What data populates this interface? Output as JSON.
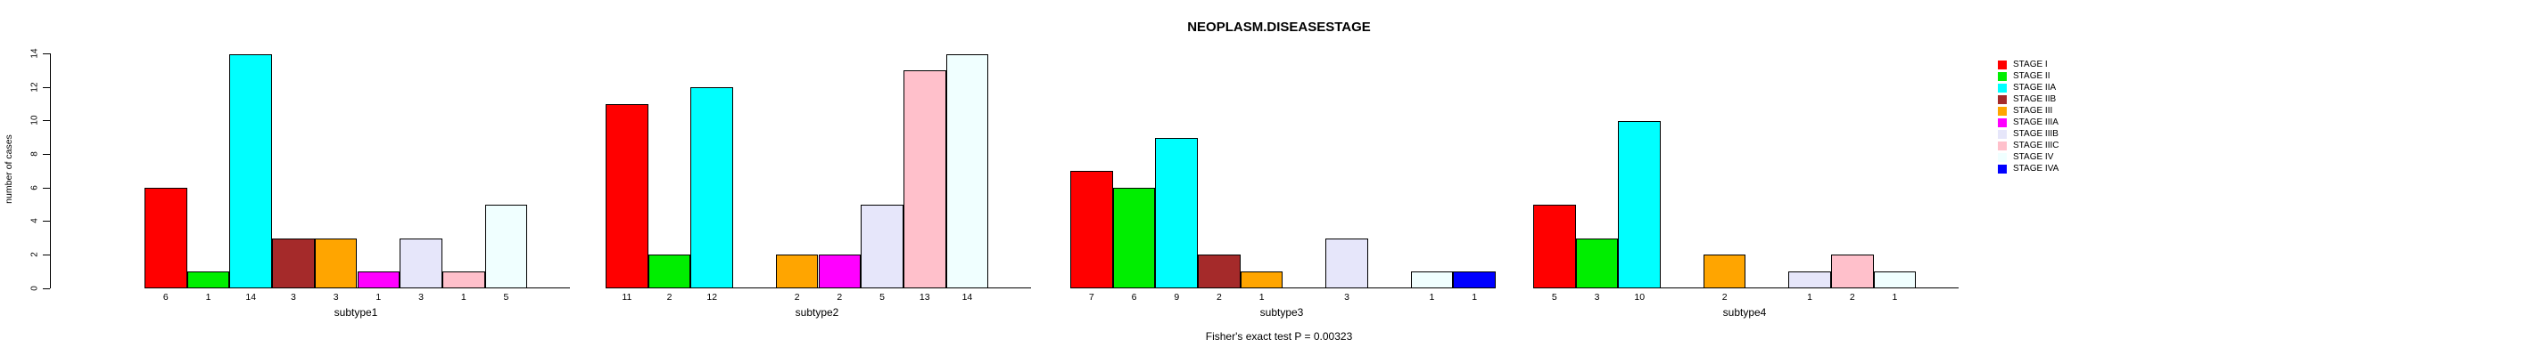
{
  "title": "NEOPLASM.DISEASESTAGE",
  "ylabel": "number of cases",
  "footer": "Fisher's exact test P = 0.00323",
  "chart_data": {
    "type": "bar",
    "title": "NEOPLASM.DISEASESTAGE",
    "xlabel": "",
    "ylabel": "number of cases",
    "ylim": [
      0,
      14
    ],
    "yticks": [
      0,
      2,
      4,
      6,
      8,
      10,
      12,
      14
    ],
    "grid": false,
    "legend_position": "right",
    "annotation": "Fisher's exact test P = 0.00323",
    "bar_border_color": "#000000",
    "series": [
      {
        "name": "STAGE I",
        "color": "#FF0000"
      },
      {
        "name": "STAGE II",
        "color": "#00EE00"
      },
      {
        "name": "STAGE IIA",
        "color": "#00FFFF"
      },
      {
        "name": "STAGE IIB",
        "color": "#A52A2A"
      },
      {
        "name": "STAGE III",
        "color": "#FFA500"
      },
      {
        "name": "STAGE IIIA",
        "color": "#FF00FF"
      },
      {
        "name": "STAGE IIIB",
        "color": "#E6E6FA"
      },
      {
        "name": "STAGE IIIC",
        "color": "#FFC0CB"
      },
      {
        "name": "STAGE IV",
        "color": "#F0FFFF"
      },
      {
        "name": "STAGE IVA",
        "color": "#0000FF"
      }
    ],
    "groups": [
      {
        "label": "subtype1",
        "values": [
          6,
          1,
          14,
          3,
          3,
          1,
          3,
          1,
          5,
          0
        ]
      },
      {
        "label": "subtype2",
        "values": [
          11,
          2,
          12,
          0,
          2,
          2,
          5,
          13,
          14,
          0
        ]
      },
      {
        "label": "subtype3",
        "values": [
          7,
          6,
          9,
          2,
          1,
          0,
          3,
          0,
          1,
          1
        ]
      },
      {
        "label": "subtype4",
        "values": [
          5,
          3,
          10,
          0,
          2,
          0,
          1,
          2,
          1,
          0
        ]
      }
    ]
  }
}
